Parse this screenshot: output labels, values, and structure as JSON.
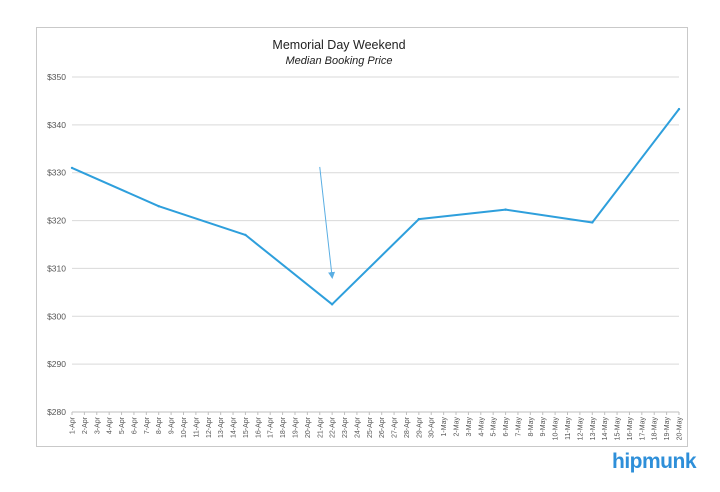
{
  "chart_data": {
    "type": "line",
    "title": "Memorial Day Weekend",
    "subtitle": "Median Booking Price",
    "xlabel": "",
    "ylabel": "",
    "ylim": [
      280,
      350
    ],
    "y_ticks": [
      "$280",
      "$290",
      "$300",
      "$310",
      "$320",
      "$330",
      "$340",
      "$350"
    ],
    "y_tick_values": [
      280,
      290,
      300,
      310,
      320,
      330,
      340,
      350
    ],
    "grid": true,
    "legend": "none",
    "categories": [
      "1-Apr",
      "2-Apr",
      "3-Apr",
      "4-Apr",
      "5-Apr",
      "6-Apr",
      "7-Apr",
      "8-Apr",
      "9-Apr",
      "10-Apr",
      "11-Apr",
      "12-Apr",
      "13-Apr",
      "14-Apr",
      "15-Apr",
      "16-Apr",
      "17-Apr",
      "18-Apr",
      "19-Apr",
      "20-Apr",
      "21-Apr",
      "22-Apr",
      "23-Apr",
      "24-Apr",
      "25-Apr",
      "26-Apr",
      "27-Apr",
      "28-Apr",
      "29-Apr",
      "30-Apr",
      "1-May",
      "2-May",
      "3-May",
      "4-May",
      "5-May",
      "6-May",
      "7-May",
      "8-May",
      "9-May",
      "10-May",
      "11-May",
      "12-May",
      "13-May",
      "14-May",
      "15-May",
      "16-May",
      "17-May",
      "18-May",
      "19-May",
      "20-May"
    ],
    "series": [
      {
        "color": "#2e9fdc",
        "points": [
          {
            "x": "1-Apr",
            "y": 331
          },
          {
            "x": "8-Apr",
            "y": 323
          },
          {
            "x": "15-Apr",
            "y": 317
          },
          {
            "x": "22-Apr",
            "y": 302.5
          },
          {
            "x": "29-Apr",
            "y": 320.3
          },
          {
            "x": "6-May",
            "y": 322.3
          },
          {
            "x": "13-May",
            "y": 319.6
          },
          {
            "x": "20-May",
            "y": 343.3
          }
        ]
      }
    ],
    "annotations": [
      {
        "type": "arrow",
        "from": {
          "x": "21-Apr",
          "y": 331.2
        },
        "to": {
          "x": "22-Apr",
          "y": 308.2
        },
        "color": "#5aaee3"
      }
    ]
  },
  "brand": {
    "logo_text": "hipmunk",
    "color": "#2e8fd9"
  }
}
